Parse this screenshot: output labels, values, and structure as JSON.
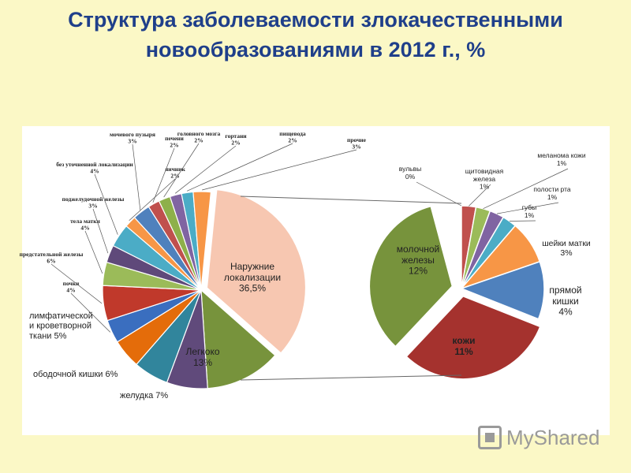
{
  "title_line1": "Структура заболеваемости злокачественными",
  "title_line2": "новообразованиями в 2012 г., %",
  "watermark": "MyShared",
  "chart_data": [
    {
      "type": "pie",
      "title": "",
      "slices": [
        {
          "label": "Наружние локализации",
          "value": 36.5,
          "text": "Наружние локализации 36,5%",
          "color": "#f7c7b1"
        },
        {
          "label": "Легкоко",
          "value": 13,
          "text": "Легкоко 13%",
          "color": "#77933c"
        },
        {
          "label": "желудка",
          "value": 7,
          "text": "желудка 7%",
          "color": "#604a7b"
        },
        {
          "label": "ободочной кишки",
          "value": 6,
          "text": "ободочной кишки 6%",
          "color": "#31859c"
        },
        {
          "label": "лимфатической и кроветворной ткани",
          "value": 5,
          "text": "лимфатической и кроветворной ткани 5%",
          "color": "#e46c0a"
        },
        {
          "label": "почки",
          "value": 4,
          "text": "почки 4%",
          "color": "#3a6ebf"
        },
        {
          "label": "предстательной железы",
          "value": 6,
          "text": "предстательной железы 6%",
          "color": "#c0392b"
        },
        {
          "label": "тела матки",
          "value": 4,
          "text": "тела матки 4%",
          "color": "#9bbb59"
        },
        {
          "label": "поджелудочной железы",
          "value": 3,
          "text": "поджелудочной железы 3%",
          "color": "#5f497a"
        },
        {
          "label": "без уточненной локализации",
          "value": 4,
          "text": "без уточненной локализации 4%",
          "color": "#4bacc6"
        },
        {
          "label": "яичник",
          "value": 2,
          "text": "яичник 2%",
          "color": "#f79646"
        },
        {
          "label": "мочевого пузыря",
          "value": 3,
          "text": "мочевого пузыря 3%",
          "color": "#4f81bd"
        },
        {
          "label": "печени",
          "value": 2,
          "text": "печени 2%",
          "color": "#c0504d"
        },
        {
          "label": "головного мозга",
          "value": 2,
          "text": "головного мозга 2%",
          "color": "#8eb04a"
        },
        {
          "label": "гортани",
          "value": 2,
          "text": "гортани 2%",
          "color": "#8064a2"
        },
        {
          "label": "пищевода",
          "value": 2,
          "text": "пищевода 2%",
          "color": "#4bacc6"
        },
        {
          "label": "прочие",
          "value": 3,
          "text": "прочие 3%",
          "color": "#f79646"
        }
      ]
    },
    {
      "type": "pie",
      "title": "",
      "slices": [
        {
          "label": "вульвы",
          "value": 0,
          "text": "вульвы 0%",
          "color": "#4f81bd"
        },
        {
          "label": "щитовидная железа",
          "value": 1,
          "text": "щитовидная железа 1%",
          "color": "#c0504d"
        },
        {
          "label": "меланома кожи",
          "value": 1,
          "text": "меланома кожи 1%",
          "color": "#9bbb59"
        },
        {
          "label": "полости рта",
          "value": 1,
          "text": "полости рта 1%",
          "color": "#8064a2"
        },
        {
          "label": "губы",
          "value": 1,
          "text": "губы 1%",
          "color": "#4bacc6"
        },
        {
          "label": "шейки матки",
          "value": 3,
          "text": "шейки матки 3%",
          "color": "#f79646"
        },
        {
          "label": "прямой кишки",
          "value": 4,
          "text": "прямой кишки 4%",
          "color": "#4f81bd"
        },
        {
          "label": "кожи",
          "value": 11,
          "text": "кожи 11%",
          "color": "#a5322e"
        },
        {
          "label": "молочной железы",
          "value": 12,
          "text": "молочной железы 12%",
          "color": "#77933c"
        }
      ]
    }
  ]
}
